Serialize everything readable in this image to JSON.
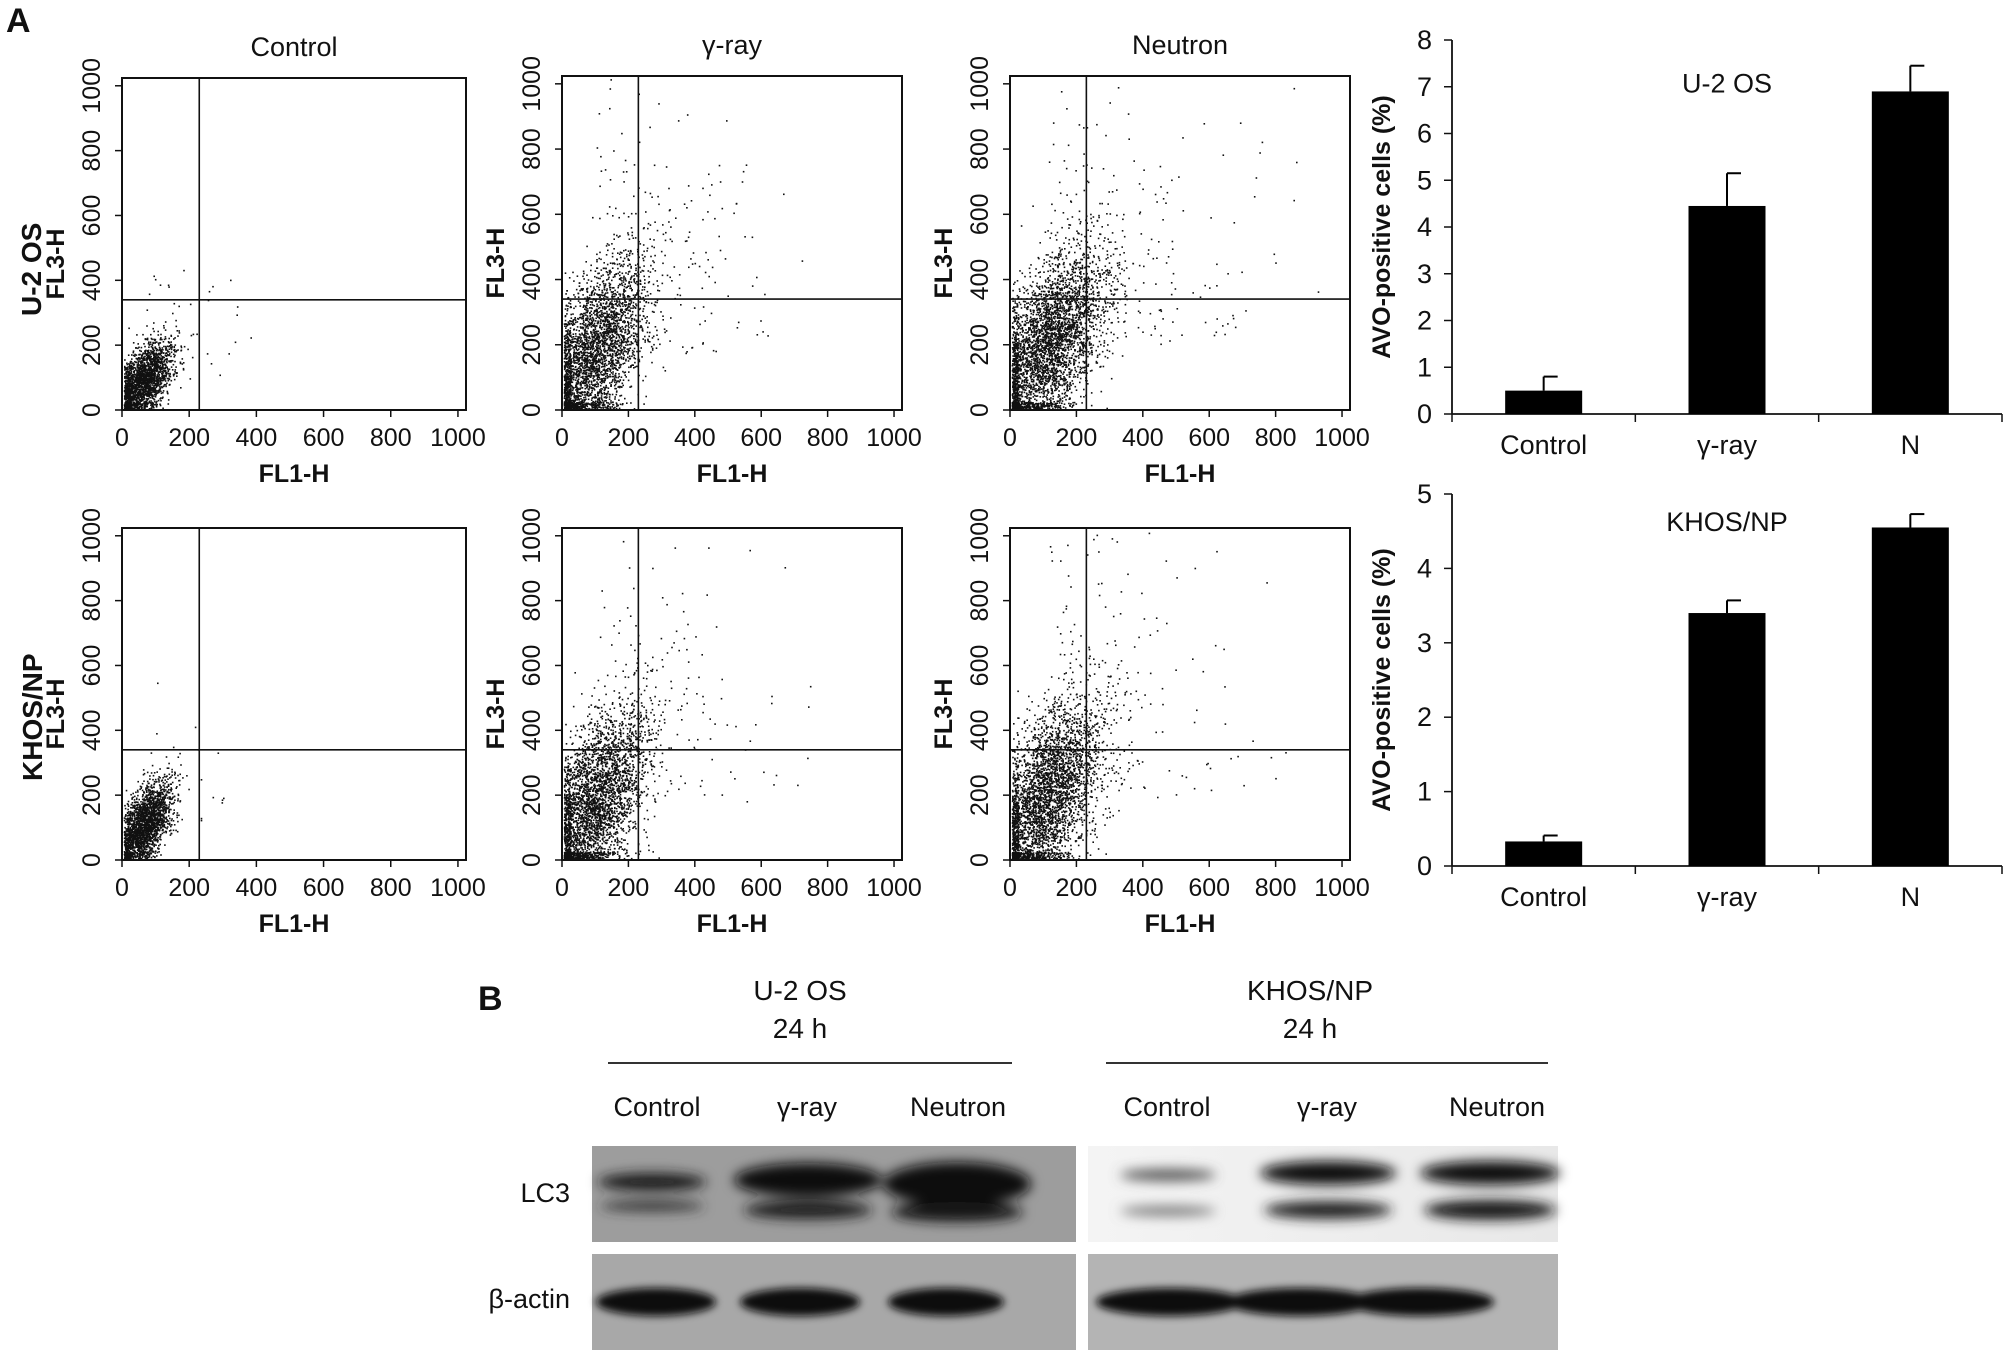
{
  "panels": {
    "a": "A",
    "b": "B"
  },
  "rows": [
    "U-2 OS",
    "KHOS/NP"
  ],
  "chart_data": [
    {
      "type": "scatter",
      "panel": "U-2 OS Control",
      "title": "Control",
      "xlabel": "FL1-H",
      "ylabel": "FL3-H",
      "xlim": [
        0,
        1024
      ],
      "ylim": [
        0,
        1024
      ],
      "xticks": [
        0,
        200,
        400,
        600,
        800,
        1000
      ],
      "yticks": [
        0,
        200,
        400,
        600,
        800,
        1000
      ],
      "gates": {
        "x": 230,
        "y": 340
      },
      "cloud": {
        "cx": 60,
        "cy": 90,
        "sx": 45,
        "sy": 60,
        "n": 2200,
        "tail": 0.015,
        "seed": 11
      }
    },
    {
      "type": "scatter",
      "panel": "U-2 OS γ-ray",
      "title": "γ-ray",
      "xlabel": "FL1-H",
      "ylabel": "FL3-H",
      "xlim": [
        0,
        1024
      ],
      "ylim": [
        0,
        1024
      ],
      "xticks": [
        0,
        200,
        400,
        600,
        800,
        1000
      ],
      "yticks": [
        0,
        200,
        400,
        600,
        800,
        1000
      ],
      "gates": {
        "x": 230,
        "y": 340
      },
      "cloud": {
        "cx": 90,
        "cy": 170,
        "sx": 80,
        "sy": 140,
        "n": 3400,
        "tail": 0.06,
        "seed": 23
      }
    },
    {
      "type": "scatter",
      "panel": "U-2 OS Neutron",
      "title": "Neutron",
      "xlabel": "FL1-H",
      "ylabel": "FL3-H",
      "xlim": [
        0,
        1024
      ],
      "ylim": [
        0,
        1024
      ],
      "xticks": [
        0,
        200,
        400,
        600,
        800,
        1000
      ],
      "yticks": [
        0,
        200,
        400,
        600,
        800,
        1000
      ],
      "gates": {
        "x": 230,
        "y": 340
      },
      "cloud": {
        "cx": 110,
        "cy": 200,
        "sx": 90,
        "sy": 150,
        "n": 3800,
        "tail": 0.07,
        "seed": 37
      }
    },
    {
      "type": "scatter",
      "panel": "KHOS/NP Control",
      "title": "",
      "xlabel": "FL1-H",
      "ylabel": "FL3-H",
      "xlim": [
        0,
        1024
      ],
      "ylim": [
        0,
        1024
      ],
      "xticks": [
        0,
        200,
        400,
        600,
        800,
        1000
      ],
      "yticks": [
        0,
        200,
        400,
        600,
        800,
        1000
      ],
      "gates": {
        "x": 230,
        "y": 340
      },
      "cloud": {
        "cx": 65,
        "cy": 110,
        "sx": 40,
        "sy": 65,
        "n": 2200,
        "tail": 0.012,
        "seed": 41
      }
    },
    {
      "type": "scatter",
      "panel": "KHOS/NP γ-ray",
      "title": "",
      "xlabel": "FL1-H",
      "ylabel": "FL3-H",
      "xlim": [
        0,
        1024
      ],
      "ylim": [
        0,
        1024
      ],
      "xticks": [
        0,
        200,
        400,
        600,
        800,
        1000
      ],
      "yticks": [
        0,
        200,
        400,
        600,
        800,
        1000
      ],
      "gates": {
        "x": 230,
        "y": 340
      },
      "cloud": {
        "cx": 95,
        "cy": 180,
        "sx": 80,
        "sy": 140,
        "n": 3400,
        "tail": 0.055,
        "seed": 53
      }
    },
    {
      "type": "scatter",
      "panel": "KHOS/NP Neutron",
      "title": "",
      "xlabel": "FL1-H",
      "ylabel": "FL3-H",
      "xlim": [
        0,
        1024
      ],
      "ylim": [
        0,
        1024
      ],
      "xticks": [
        0,
        200,
        400,
        600,
        800,
        1000
      ],
      "yticks": [
        0,
        200,
        400,
        600,
        800,
        1000
      ],
      "gates": {
        "x": 230,
        "y": 340
      },
      "cloud": {
        "cx": 105,
        "cy": 195,
        "sx": 85,
        "sy": 145,
        "n": 3600,
        "tail": 0.06,
        "seed": 67
      }
    },
    {
      "type": "bar",
      "panel": "U-2 OS summary",
      "annotation": "U-2 OS",
      "categories": [
        "Control",
        "γ-ray",
        "N"
      ],
      "values": [
        0.5,
        4.45,
        6.9
      ],
      "errors": [
        0.3,
        0.7,
        0.55
      ],
      "ylabel": "AVO-positive cells (%)",
      "ylim": [
        0,
        8
      ],
      "yticks": [
        0,
        1,
        2,
        3,
        4,
        5,
        6,
        7,
        8
      ]
    },
    {
      "type": "bar",
      "panel": "KHOS/NP summary",
      "annotation": "KHOS/NP",
      "categories": [
        "Control",
        "γ-ray",
        "N"
      ],
      "values": [
        0.33,
        3.4,
        4.55
      ],
      "errors": [
        0.08,
        0.17,
        0.18
      ],
      "ylabel": "AVO-positive cells (%)",
      "ylim": [
        0,
        5
      ],
      "yticks": [
        0,
        1,
        2,
        3,
        4,
        5
      ]
    }
  ],
  "blot": {
    "groups": [
      {
        "cell": "U-2 OS",
        "time": "24 h",
        "lanes": [
          "Control",
          "γ-ray",
          "Neutron"
        ]
      },
      {
        "cell": "KHOS/NP",
        "time": "24 h",
        "lanes": [
          "Control",
          "γ-ray",
          "Neutron"
        ]
      }
    ],
    "rows": [
      "LC3",
      "β-actin"
    ]
  }
}
